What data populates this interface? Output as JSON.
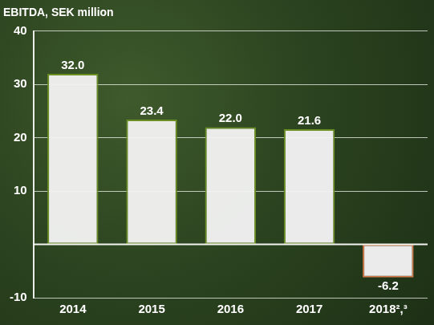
{
  "chart_data": {
    "type": "bar",
    "title": "EBITDA, SEK million",
    "categories": [
      "2014",
      "2015",
      "2016",
      "2017",
      "2018²,³"
    ],
    "values": [
      32.0,
      23.4,
      22.0,
      21.6,
      -6.2
    ],
    "value_labels": [
      "32.0",
      "23.4",
      "22.0",
      "21.6",
      "-6.2"
    ],
    "colors": [
      "#6b8e23",
      "#6b8e23",
      "#6b8e23",
      "#6b8e23",
      "#d2784b"
    ],
    "ylim": [
      -10,
      40
    ],
    "yticks": [
      -10,
      10,
      20,
      30,
      40
    ],
    "grid": true,
    "data_labels": true
  }
}
